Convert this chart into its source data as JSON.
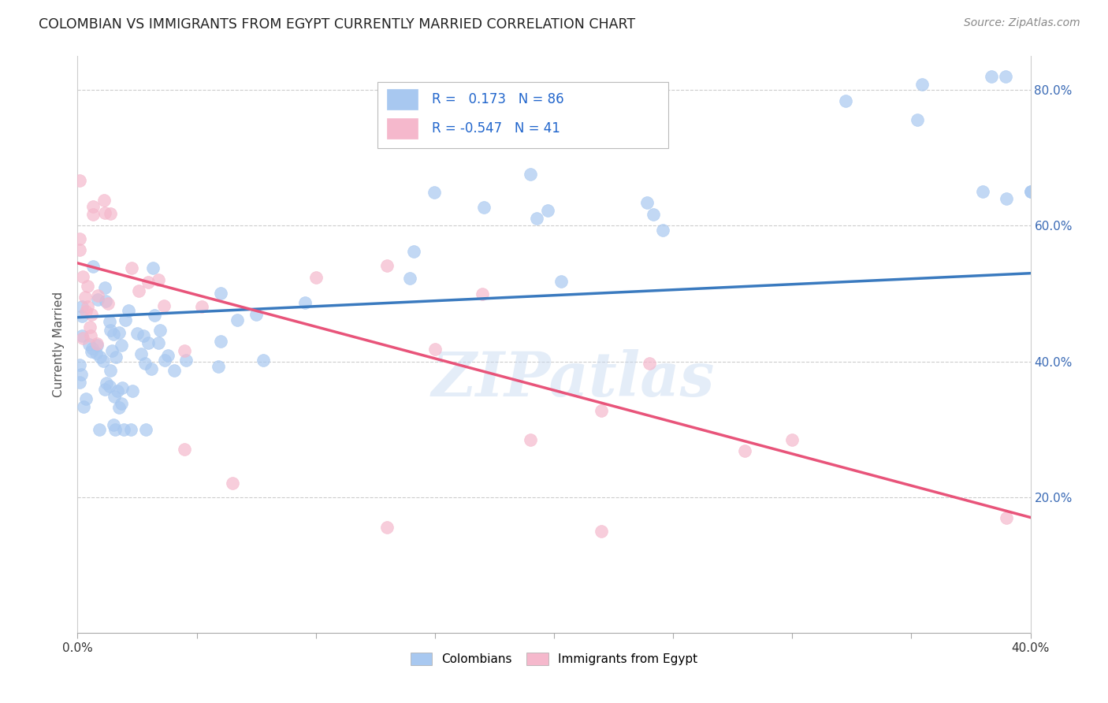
{
  "title": "COLOMBIAN VS IMMIGRANTS FROM EGYPT CURRENTLY MARRIED CORRELATION CHART",
  "source": "Source: ZipAtlas.com",
  "ylabel": "Currently Married",
  "x_min": 0.0,
  "x_max": 0.4,
  "y_min": 0.0,
  "y_max": 0.85,
  "y_ticks": [
    0.2,
    0.4,
    0.6,
    0.8
  ],
  "y_tick_labels": [
    "20.0%",
    "40.0%",
    "60.0%",
    "80.0%"
  ],
  "colombian_R": 0.173,
  "colombian_N": 86,
  "egypt_R": -0.547,
  "egypt_N": 41,
  "blue_color": "#a8c8f0",
  "pink_color": "#f5b8cc",
  "blue_line_color": "#3a7abf",
  "pink_line_color": "#e8547a",
  "watermark": "ZIPatlas",
  "blue_line_y0": 0.465,
  "blue_line_y1": 0.53,
  "pink_line_y0": 0.545,
  "pink_line_y1": 0.17
}
